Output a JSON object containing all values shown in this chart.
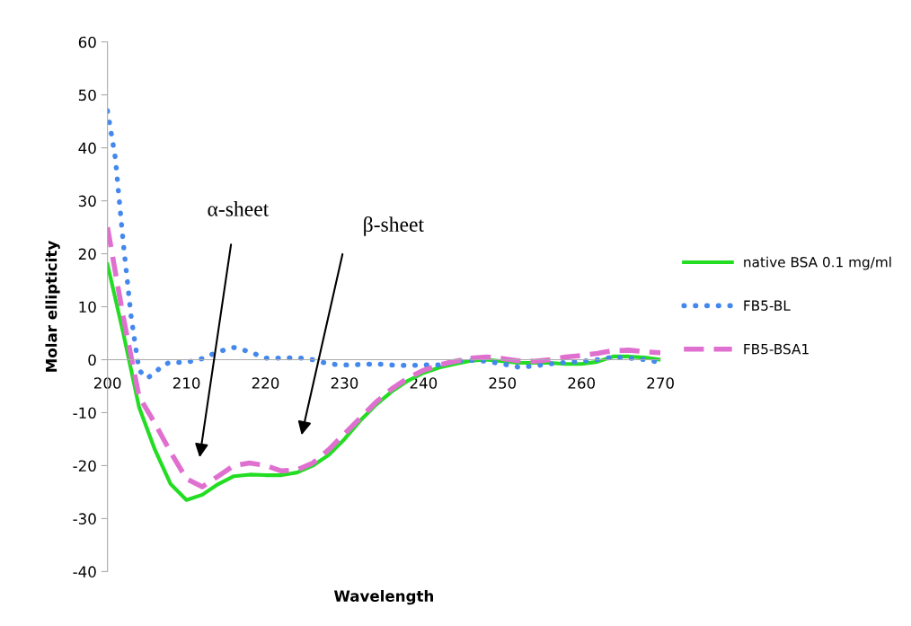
{
  "chart_data": {
    "type": "line",
    "xlabel": "Wavelength",
    "ylabel": "Molar ellipticity",
    "xlim": [
      200,
      270
    ],
    "xticks": [
      200,
      210,
      220,
      230,
      240,
      250,
      260,
      270
    ],
    "ylim": [
      -40,
      60
    ],
    "yticks": [
      -40,
      -30,
      -20,
      -10,
      0,
      10,
      20,
      30,
      40,
      50,
      60
    ],
    "grid": false,
    "legend": "right",
    "series": [
      {
        "name": "native BSA 0.1 mg/ml",
        "color": "#22dd22",
        "line_style": "solid",
        "x": [
          200,
          202,
          204,
          206,
          208,
          210,
          212,
          214,
          216,
          218,
          220,
          222,
          224,
          226,
          228,
          230,
          232,
          234,
          236,
          238,
          240,
          242,
          244,
          246,
          248,
          250,
          252,
          254,
          256,
          258,
          260,
          262,
          264,
          266,
          268,
          270
        ],
        "values": [
          18,
          5,
          -9,
          -17,
          -23.5,
          -26.5,
          -25.5,
          -23.5,
          -22,
          -21.7,
          -21.8,
          -21.8,
          -21.3,
          -20,
          -18,
          -15,
          -11.5,
          -8.5,
          -6,
          -4,
          -2.5,
          -1.5,
          -0.8,
          -0.2,
          0,
          -0.3,
          -0.6,
          -0.6,
          -0.6,
          -0.8,
          -0.8,
          -0.4,
          0.6,
          0.6,
          0.4,
          0
        ]
      },
      {
        "name": "FB5-BL",
        "color": "#4488ee",
        "line_style": "dotted",
        "x": [
          200,
          201,
          202,
          203,
          204,
          205,
          206,
          207,
          208,
          210,
          212,
          214,
          216,
          218,
          220,
          222,
          224,
          226,
          228,
          230,
          232,
          234,
          236,
          238,
          240,
          242,
          244,
          246,
          248,
          250,
          252,
          254,
          256,
          258,
          260,
          262,
          264,
          266,
          268,
          270
        ],
        "values": [
          47,
          38,
          22,
          8,
          -2,
          -3.5,
          -2.5,
          -1,
          -0.5,
          -0.5,
          0.2,
          1.5,
          2.3,
          1.5,
          0.3,
          0.3,
          0.4,
          0,
          -0.8,
          -1,
          -0.9,
          -0.8,
          -1,
          -1.1,
          -1,
          -1,
          -0.3,
          -0.1,
          -0.3,
          -0.8,
          -1.4,
          -1.2,
          -0.8,
          -0.5,
          -0.3,
          0,
          0.5,
          0.3,
          0,
          -0.5
        ]
      },
      {
        "name": "FB5-BSA1",
        "color": "#e070d0",
        "line_style": "dashed",
        "x": [
          200,
          202,
          204,
          206,
          208,
          210,
          212,
          214,
          216,
          218,
          220,
          222,
          224,
          226,
          228,
          230,
          232,
          234,
          236,
          238,
          240,
          242,
          244,
          246,
          248,
          250,
          252,
          254,
          256,
          258,
          260,
          262,
          264,
          266,
          268,
          270
        ],
        "values": [
          25,
          8,
          -7,
          -12,
          -17.5,
          -22.5,
          -24,
          -22,
          -20,
          -19.5,
          -20,
          -21,
          -20.8,
          -19.5,
          -17,
          -14,
          -11,
          -8,
          -5.5,
          -3.5,
          -2,
          -1,
          -0.3,
          0.3,
          0.5,
          0.2,
          -0.2,
          -0.3,
          0,
          0.5,
          0.8,
          1.2,
          1.7,
          1.8,
          1.5,
          1.3
        ]
      }
    ],
    "annotations": [
      "α-sheet",
      "β-sheet"
    ]
  }
}
